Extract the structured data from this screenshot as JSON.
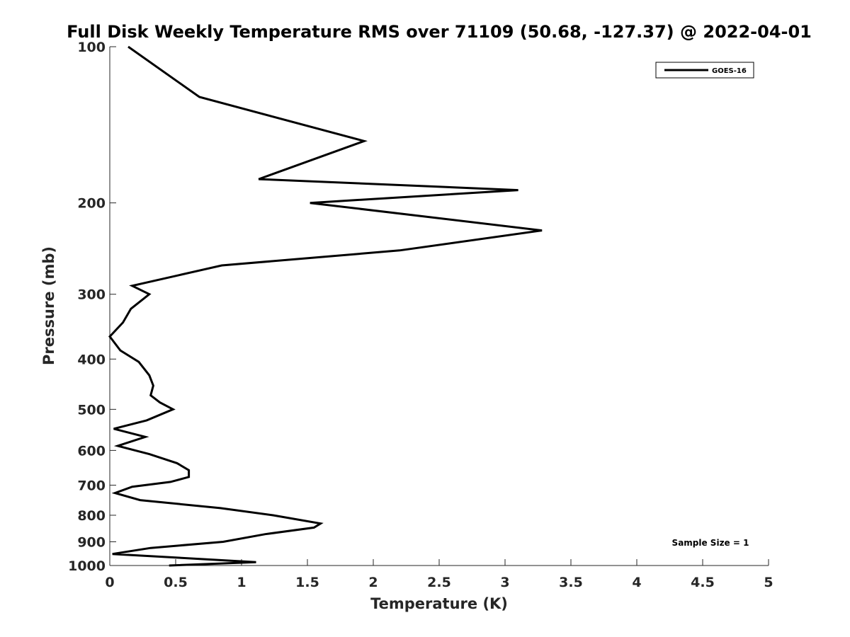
{
  "chart_data": {
    "type": "line",
    "title": "Full Disk Weekly Temperature RMS over 71109 (50.68, -127.37) @ 2022-04-01",
    "xlabel": "Temperature (K)",
    "ylabel": "Pressure (mb)",
    "xlim": [
      0,
      5
    ],
    "ylim": [
      100,
      1000
    ],
    "y_scale": "log",
    "y_reversed": true,
    "grid": false,
    "legend_position": "top-right",
    "x_ticks": [
      "0",
      "0.5",
      "1",
      "1.5",
      "2",
      "2.5",
      "3",
      "3.5",
      "4",
      "4.5",
      "5"
    ],
    "y_ticks": [
      "100",
      "200",
      "300",
      "400",
      "500",
      "600",
      "700",
      "800",
      "900",
      "1000"
    ],
    "series": [
      {
        "name": "GOES-16",
        "color": "#000000",
        "x": [
          0.14,
          0.68,
          1.93,
          1.13,
          3.1,
          1.52,
          3.28,
          2.2,
          0.85,
          0.17,
          0.3,
          0.16,
          0.1,
          0.0,
          0.08,
          0.22,
          0.3,
          0.33,
          0.31,
          0.38,
          0.48,
          0.28,
          0.03,
          0.27,
          0.06,
          0.3,
          0.51,
          0.6,
          0.6,
          0.46,
          0.17,
          0.04,
          0.23,
          0.84,
          1.24,
          1.6,
          1.55,
          1.18,
          0.86,
          0.31,
          0.02,
          1.11,
          0.45
        ],
        "y": [
          100,
          125,
          152,
          180,
          189,
          200,
          226,
          247,
          264,
          289,
          300,
          320,
          340,
          362,
          385,
          405,
          430,
          450,
          470,
          485,
          500,
          525,
          545,
          565,
          588,
          610,
          635,
          655,
          675,
          690,
          705,
          725,
          748,
          775,
          800,
          830,
          845,
          870,
          900,
          925,
          950,
          985,
          1000
        ]
      }
    ],
    "annotations": [
      "Sample Size = 1"
    ]
  }
}
